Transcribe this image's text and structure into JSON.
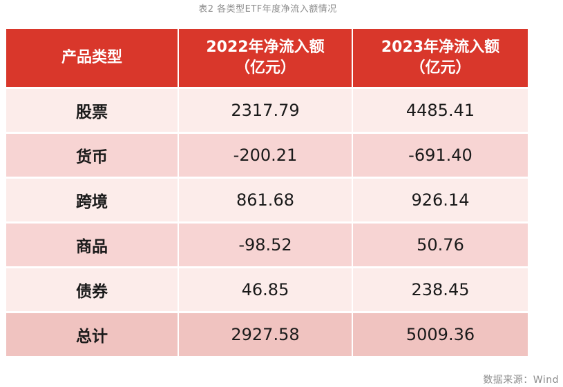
{
  "caption": "表2 各类型ETF年度净流入额情况",
  "table": {
    "headers": {
      "col1": "产品类型",
      "col2_line1": "2022年净流入额",
      "col2_line2": "（亿元）",
      "col3_line1": "2023年净流入额",
      "col3_line2": "（亿元）"
    },
    "rows": [
      {
        "type": "股票",
        "y2022": "2317.79",
        "y2023": "4485.41"
      },
      {
        "type": "货币",
        "y2022": "-200.21",
        "y2023": "-691.40"
      },
      {
        "type": "跨境",
        "y2022": "861.68",
        "y2023": "926.14"
      },
      {
        "type": "商品",
        "y2022": "-98.52",
        "y2023": "50.76"
      },
      {
        "type": "债券",
        "y2022": "46.85",
        "y2023": "238.45"
      },
      {
        "type": "总计",
        "y2022": "2927.58",
        "y2023": "5009.36"
      }
    ]
  },
  "source": "数据来源：Wind",
  "colors": {
    "header_bg": "#d9372b",
    "row_light": "#fcecea",
    "row_mid": "#f7d4d3",
    "row_total": "#f0c3c0"
  }
}
